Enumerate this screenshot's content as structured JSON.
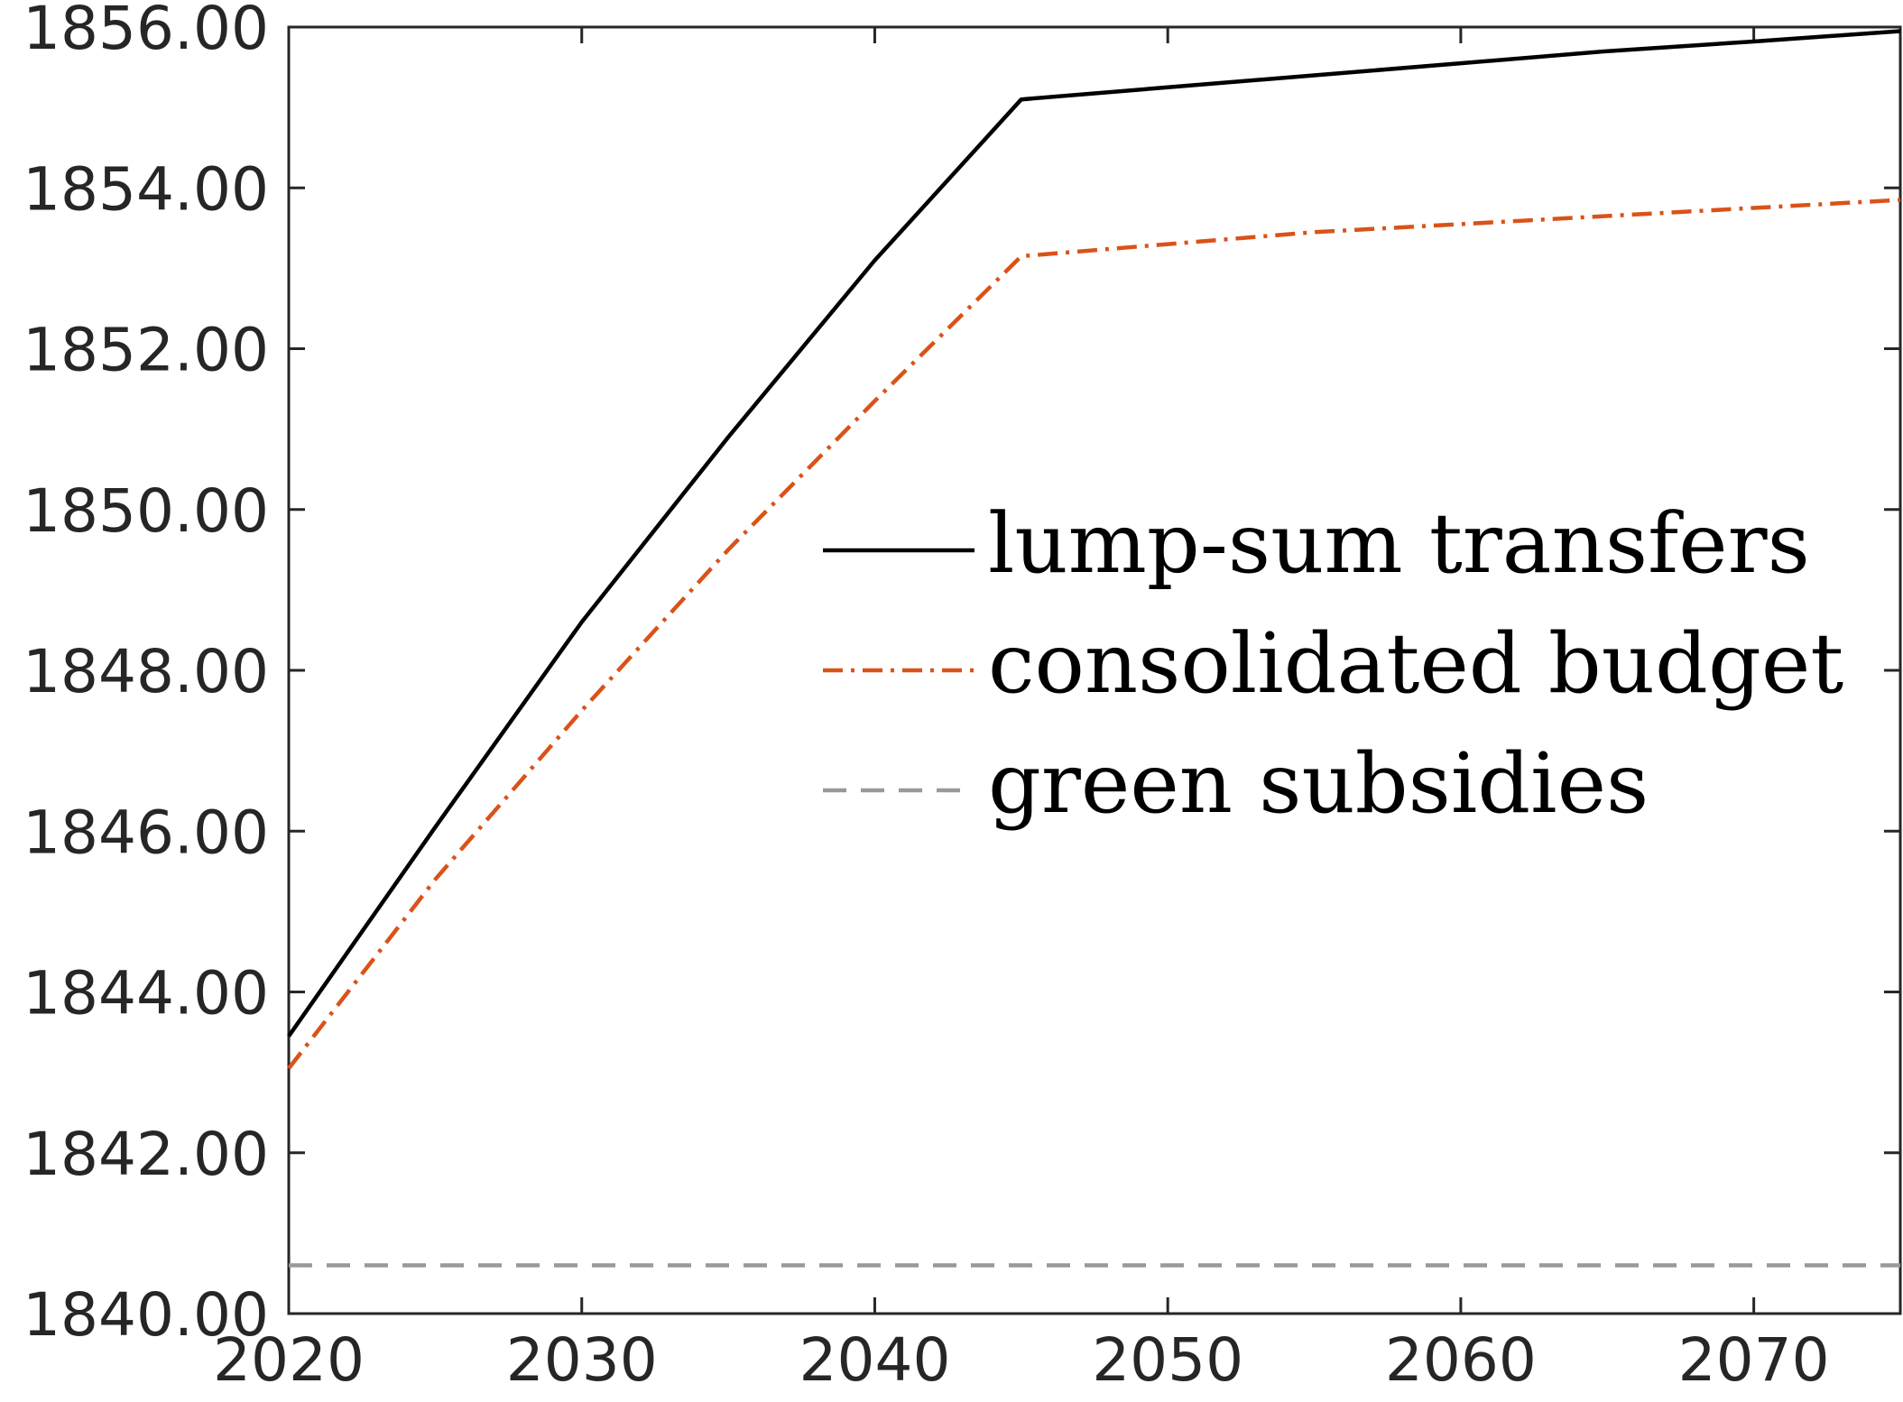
{
  "chart_data": {
    "type": "line",
    "title": "",
    "xlabel": "",
    "ylabel": "",
    "xlim": [
      2020,
      2075
    ],
    "ylim": [
      1840,
      1856
    ],
    "xticks": [
      2020,
      2030,
      2040,
      2050,
      2060,
      2070
    ],
    "yticks": [
      1840,
      1842,
      1844,
      1846,
      1848,
      1850,
      1852,
      1854,
      1856
    ],
    "xtick_labels": [
      "2020",
      "2030",
      "2040",
      "2050",
      "2060",
      "2070"
    ],
    "ytick_labels": [
      "1840.00",
      "1842.00",
      "1844.00",
      "1846.00",
      "1848.00",
      "1850.00",
      "1852.00",
      "1854.00",
      "1856.00"
    ],
    "grid": false,
    "legend_position": "center-right",
    "series": [
      {
        "name": "lump-sum transfers",
        "color": "#000000",
        "dash": "solid",
        "x": [
          2020,
          2025,
          2030,
          2035,
          2040,
          2045,
          2050,
          2055,
          2060,
          2065,
          2070,
          2075
        ],
        "y": [
          1843.45,
          1846.05,
          1848.6,
          1850.9,
          1853.1,
          1855.1,
          1855.25,
          1855.4,
          1855.55,
          1855.7,
          1855.82,
          1855.95
        ]
      },
      {
        "name": "consolidated budget",
        "color": "#D95319",
        "dash": "dashdot",
        "x": [
          2020,
          2025,
          2030,
          2035,
          2040,
          2045,
          2050,
          2055,
          2060,
          2065,
          2070,
          2075
        ],
        "y": [
          1843.05,
          1845.4,
          1847.5,
          1849.5,
          1851.35,
          1853.15,
          1853.3,
          1853.45,
          1853.55,
          1853.65,
          1853.75,
          1853.85
        ]
      },
      {
        "name": "green subsidies",
        "color": "#999999",
        "dash": "dashed",
        "x": [
          2020,
          2075
        ],
        "y": [
          1840.6,
          1840.6
        ]
      }
    ]
  }
}
